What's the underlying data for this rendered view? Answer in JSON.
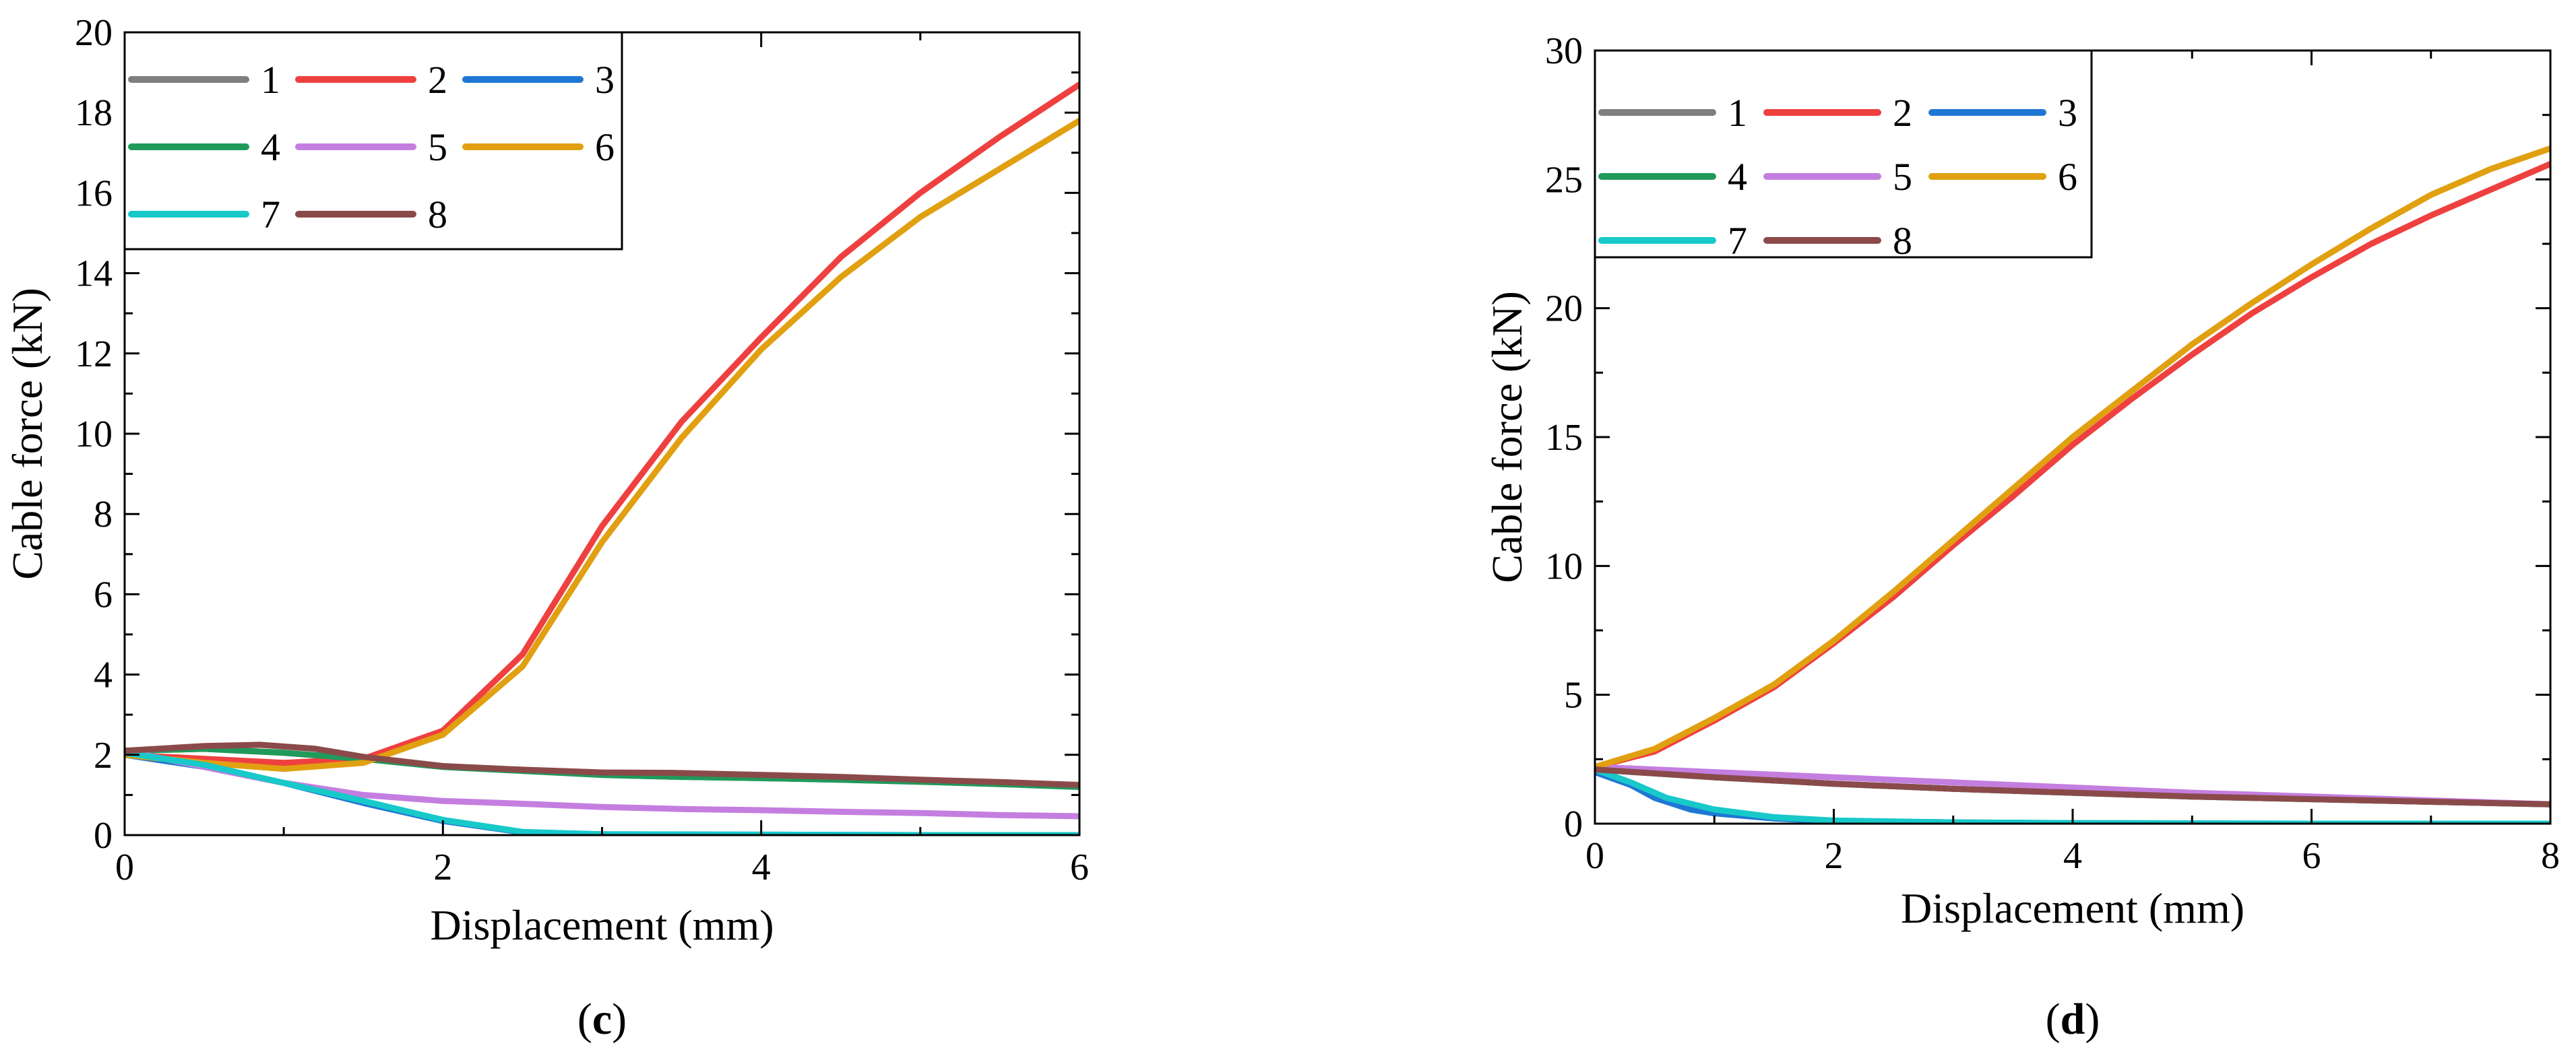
{
  "chart_data": [
    {
      "type": "line",
      "panel_label": "(c)",
      "xlabel": "Displacement (mm)",
      "ylabel": "Cable force (kN)",
      "xlim": [
        0,
        6
      ],
      "ylim": [
        0,
        20
      ],
      "xticks": [
        0,
        2,
        4,
        6
      ],
      "yticks": [
        0,
        2,
        4,
        6,
        8,
        10,
        12,
        14,
        16,
        18,
        20
      ],
      "grid": false,
      "legend_position": "top-left",
      "series": [
        {
          "name": "1",
          "color": "#7f7f7f",
          "x": [
            0,
            0.5,
            1.0,
            1.5,
            2.0,
            2.5,
            3.0,
            3.5,
            4.0,
            4.5,
            5.0,
            5.5,
            6.0
          ],
          "y": [
            2.1,
            2.15,
            2.05,
            1.9,
            1.7,
            1.6,
            1.5,
            1.45,
            1.42,
            1.38,
            1.33,
            1.27,
            1.22
          ]
        },
        {
          "name": "2",
          "color": "#ef4040",
          "x": [
            0,
            0.5,
            1.0,
            1.5,
            2.0,
            2.5,
            3.0,
            3.5,
            4.0,
            4.5,
            5.0,
            5.5,
            6.0
          ],
          "y": [
            2.0,
            1.9,
            1.8,
            1.9,
            2.6,
            4.5,
            7.7,
            10.3,
            12.4,
            14.4,
            16.0,
            17.4,
            18.7
          ]
        },
        {
          "name": "3",
          "color": "#1f77d4",
          "x": [
            0,
            0.5,
            1.0,
            1.5,
            2.0,
            2.5,
            3.0,
            4.0,
            5.0,
            6.0
          ],
          "y": [
            2.0,
            1.7,
            1.3,
            0.8,
            0.35,
            0.07,
            0.02,
            0.01,
            0.0,
            0.0
          ]
        },
        {
          "name": "4",
          "color": "#1f9a5a",
          "x": [
            0,
            0.5,
            1.0,
            1.5,
            2.0,
            2.5,
            3.0,
            3.5,
            4.0,
            4.5,
            5.0,
            5.5,
            6.0
          ],
          "y": [
            2.1,
            2.15,
            2.05,
            1.9,
            1.7,
            1.6,
            1.5,
            1.45,
            1.42,
            1.38,
            1.33,
            1.27,
            1.2
          ]
        },
        {
          "name": "5",
          "color": "#c47ee0",
          "x": [
            0,
            0.5,
            1.0,
            1.5,
            2.0,
            2.5,
            3.0,
            3.5,
            4.0,
            4.5,
            5.0,
            5.5,
            6.0
          ],
          "y": [
            2.1,
            1.7,
            1.3,
            1.0,
            0.85,
            0.78,
            0.7,
            0.65,
            0.62,
            0.58,
            0.55,
            0.5,
            0.47
          ]
        },
        {
          "name": "6",
          "color": "#e0a010",
          "x": [
            0,
            0.5,
            1.0,
            1.5,
            2.0,
            2.5,
            3.0,
            3.5,
            4.0,
            4.5,
            5.0,
            5.5,
            6.0
          ],
          "y": [
            2.0,
            1.8,
            1.65,
            1.8,
            2.5,
            4.2,
            7.3,
            9.9,
            12.1,
            13.9,
            15.4,
            16.6,
            17.8
          ]
        },
        {
          "name": "7",
          "color": "#17c9c9",
          "x": [
            0,
            0.5,
            1.0,
            1.5,
            2.0,
            2.5,
            3.0,
            4.0,
            5.0,
            6.0
          ],
          "y": [
            2.05,
            1.75,
            1.3,
            0.85,
            0.38,
            0.08,
            0.02,
            0.01,
            0.0,
            0.0
          ]
        },
        {
          "name": "8",
          "color": "#8b4a4a",
          "x": [
            0,
            0.5,
            0.85,
            1.2,
            1.5,
            2.0,
            2.5,
            3.0,
            3.45,
            4.0,
            4.5,
            5.0,
            5.5,
            6.0
          ],
          "y": [
            2.1,
            2.22,
            2.25,
            2.15,
            1.95,
            1.72,
            1.63,
            1.56,
            1.55,
            1.5,
            1.45,
            1.38,
            1.32,
            1.25
          ]
        }
      ]
    },
    {
      "type": "line",
      "panel_label": "(d)",
      "xlabel": "Displacement (mm)",
      "ylabel": "Cable force (kN)",
      "xlim": [
        0,
        8
      ],
      "ylim": [
        0,
        30
      ],
      "xticks": [
        0,
        2,
        4,
        6,
        8
      ],
      "yticks": [
        0,
        5,
        10,
        15,
        20,
        25,
        30
      ],
      "grid": false,
      "legend_position": "top-left",
      "series": [
        {
          "name": "1",
          "color": "#7f7f7f",
          "x": [
            0,
            1,
            2,
            3,
            4,
            5,
            6,
            7,
            8
          ],
          "y": [
            2.1,
            1.8,
            1.55,
            1.35,
            1.2,
            1.05,
            0.95,
            0.85,
            0.75
          ]
        },
        {
          "name": "2",
          "color": "#ef4040",
          "x": [
            0,
            0.5,
            1,
            1.5,
            2,
            2.5,
            3,
            3.5,
            4,
            4.5,
            5,
            5.5,
            6,
            6.5,
            7,
            7.5,
            8
          ],
          "y": [
            2.2,
            2.8,
            4.0,
            5.3,
            7.0,
            8.8,
            10.8,
            12.7,
            14.7,
            16.5,
            18.2,
            19.8,
            21.2,
            22.5,
            23.6,
            24.6,
            25.6
          ]
        },
        {
          "name": "3",
          "color": "#1f77d4",
          "x": [
            0,
            0.3,
            0.5,
            0.8,
            1.0,
            1.5,
            2.0,
            3.0,
            4.0,
            6.0,
            8.0
          ],
          "y": [
            2.0,
            1.5,
            1.0,
            0.55,
            0.4,
            0.2,
            0.1,
            0.05,
            0.02,
            0.0,
            0.0
          ]
        },
        {
          "name": "4",
          "color": "#1f9a5a",
          "x": [
            0,
            1,
            2,
            3,
            4,
            5,
            6,
            7,
            8
          ],
          "y": [
            2.1,
            1.8,
            1.55,
            1.35,
            1.2,
            1.05,
            0.95,
            0.85,
            0.75
          ]
        },
        {
          "name": "5",
          "color": "#c47ee0",
          "x": [
            0,
            1,
            2,
            3,
            4,
            5,
            6,
            7,
            8
          ],
          "y": [
            2.2,
            2.0,
            1.8,
            1.6,
            1.4,
            1.2,
            1.05,
            0.9,
            0.75
          ]
        },
        {
          "name": "6",
          "color": "#e0a010",
          "x": [
            0,
            0.5,
            1,
            1.5,
            2,
            2.5,
            3,
            3.5,
            4,
            4.5,
            5,
            5.5,
            6,
            6.5,
            7,
            7.5,
            8
          ],
          "y": [
            2.2,
            2.9,
            4.1,
            5.4,
            7.1,
            9.0,
            11.0,
            13.0,
            15.0,
            16.8,
            18.6,
            20.2,
            21.7,
            23.1,
            24.4,
            25.4,
            26.2
          ]
        },
        {
          "name": "7",
          "color": "#17c9c9",
          "x": [
            0,
            0.3,
            0.6,
            1.0,
            1.5,
            2.0,
            3.0,
            4.0,
            6.0,
            8.0
          ],
          "y": [
            2.1,
            1.6,
            1.0,
            0.55,
            0.25,
            0.12,
            0.05,
            0.02,
            0.0,
            0.0
          ]
        },
        {
          "name": "8",
          "color": "#8b4a4a",
          "x": [
            0,
            1,
            2,
            3,
            4,
            5,
            6,
            7,
            8
          ],
          "y": [
            2.1,
            1.8,
            1.55,
            1.35,
            1.2,
            1.05,
            0.95,
            0.85,
            0.75
          ]
        }
      ]
    }
  ]
}
